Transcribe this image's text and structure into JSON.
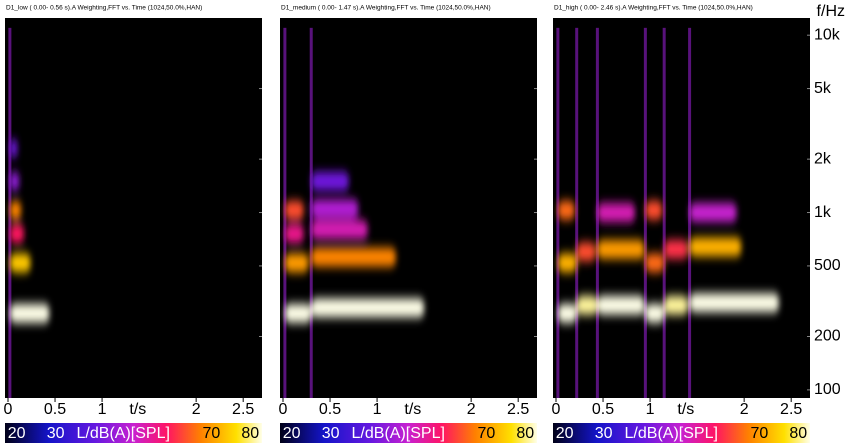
{
  "chart_data": [
    {
      "type": "spectrogram",
      "title": "D1_low ( 0.00- 0.56 s).A Weighting,FFT vs. Time (1024,50.0%,HAN)",
      "xlabel": "t/s",
      "xlim": [
        0,
        2.7
      ],
      "xticks": [
        0,
        0.5,
        1,
        2,
        2.5
      ],
      "log_y": true,
      "ylim": [
        90,
        12500
      ],
      "yticks": [
        200,
        500,
        1000,
        2000,
        5000
      ],
      "strikes": [
        0.02
      ],
      "events": [
        {
          "t": 0.02,
          "f": 2300,
          "level": 42,
          "duration": 0.08
        },
        {
          "t": 0.02,
          "f": 1500,
          "level": 45,
          "duration": 0.1
        },
        {
          "t": 0.02,
          "f": 760,
          "level": 58,
          "duration": 0.15
        },
        {
          "t": 0.02,
          "f": 1030,
          "level": 66,
          "duration": 0.12
        },
        {
          "t": 0.02,
          "f": 520,
          "level": 72,
          "duration": 0.22
        },
        {
          "t": 0.02,
          "f": 270,
          "level": 80,
          "duration": 0.42
        }
      ],
      "colorbar": {
        "label": "L/dB(A)[SPL]",
        "lim": [
          17,
          83
        ],
        "ticks": [
          20,
          30,
          70,
          80
        ]
      }
    },
    {
      "type": "spectrogram",
      "title": "D1_medium ( 0.00- 1.47 s).A Weighting,FFT vs. Time (1024,50.0%,HAN)",
      "xlabel": "t/s",
      "xlim": [
        0,
        2.7
      ],
      "xticks": [
        0,
        0.5,
        1,
        2,
        2.5
      ],
      "log_y": true,
      "ylim": [
        90,
        12500
      ],
      "yticks": [
        200,
        500,
        1000,
        2000,
        5000
      ],
      "strikes": [
        0.02,
        0.3
      ],
      "events": [
        {
          "t": 0.3,
          "f": 1500,
          "level": 42,
          "duration": 0.4
        },
        {
          "t": 0.3,
          "f": 1050,
          "level": 48,
          "duration": 0.5
        },
        {
          "t": 0.3,
          "f": 800,
          "level": 52,
          "duration": 0.6
        },
        {
          "t": 0.02,
          "f": 760,
          "level": 55,
          "duration": 0.2
        },
        {
          "t": 0.02,
          "f": 1030,
          "level": 62,
          "duration": 0.2
        },
        {
          "t": 0.3,
          "f": 560,
          "level": 66,
          "duration": 0.9
        },
        {
          "t": 0.02,
          "f": 520,
          "level": 68,
          "duration": 0.25
        },
        {
          "t": 0.02,
          "f": 270,
          "level": 80,
          "duration": 0.28
        },
        {
          "t": 0.3,
          "f": 290,
          "level": 80,
          "duration": 1.2
        }
      ],
      "colorbar": {
        "label": "L/dB(A)[SPL]",
        "lim": [
          17,
          83
        ],
        "ticks": [
          20,
          30,
          70,
          80
        ]
      }
    },
    {
      "type": "spectrogram",
      "title": "D1_high ( 0.00- 2.46 s).A Weighting,FFT vs. Time (1024,50.0%,HAN)",
      "xlabel": "t/s",
      "xlim": [
        0,
        2.7
      ],
      "xticks": [
        0,
        0.5,
        1,
        2,
        2.5
      ],
      "log_y": true,
      "ylim": [
        90,
        12500
      ],
      "ylabel": "f/Hz",
      "yticks": [
        100,
        200,
        500,
        {
          "value": 1000,
          "label": "1k"
        },
        {
          "value": 2000,
          "label": "2k"
        },
        {
          "value": 5000,
          "label": "5k"
        },
        {
          "value": 10000,
          "label": "10k"
        }
      ],
      "strikes": [
        0.02,
        0.22,
        0.44,
        0.95,
        1.15,
        1.42
      ],
      "events": [
        {
          "t": 1.42,
          "f": 1000,
          "level": 50,
          "duration": 0.5
        },
        {
          "t": 0.44,
          "f": 1000,
          "level": 52,
          "duration": 0.4
        },
        {
          "t": 1.15,
          "f": 620,
          "level": 60,
          "duration": 0.25
        },
        {
          "t": 0.22,
          "f": 600,
          "level": 62,
          "duration": 0.2
        },
        {
          "t": 0.95,
          "f": 1030,
          "level": 62,
          "duration": 0.18
        },
        {
          "t": 0.02,
          "f": 1030,
          "level": 64,
          "duration": 0.18
        },
        {
          "t": 0.95,
          "f": 520,
          "level": 64,
          "duration": 0.2
        },
        {
          "t": 0.44,
          "f": 620,
          "level": 68,
          "duration": 0.5
        },
        {
          "t": 0.02,
          "f": 520,
          "level": 70,
          "duration": 0.2
        },
        {
          "t": 1.42,
          "f": 640,
          "level": 70,
          "duration": 0.55
        },
        {
          "t": 0.22,
          "f": 300,
          "level": 78,
          "duration": 0.22
        },
        {
          "t": 1.15,
          "f": 300,
          "level": 78,
          "duration": 0.25
        },
        {
          "t": 0.44,
          "f": 300,
          "level": 80,
          "duration": 0.5
        },
        {
          "t": 1.42,
          "f": 310,
          "level": 80,
          "duration": 0.95
        },
        {
          "t": 0.02,
          "f": 270,
          "level": 82,
          "duration": 0.2
        },
        {
          "t": 0.95,
          "f": 270,
          "level": 82,
          "duration": 0.2
        }
      ],
      "colorbar": {
        "label": "L/dB(A)[SPL]",
        "lim": [
          17,
          83
        ],
        "ticks": [
          20,
          30,
          70,
          80
        ]
      }
    }
  ]
}
